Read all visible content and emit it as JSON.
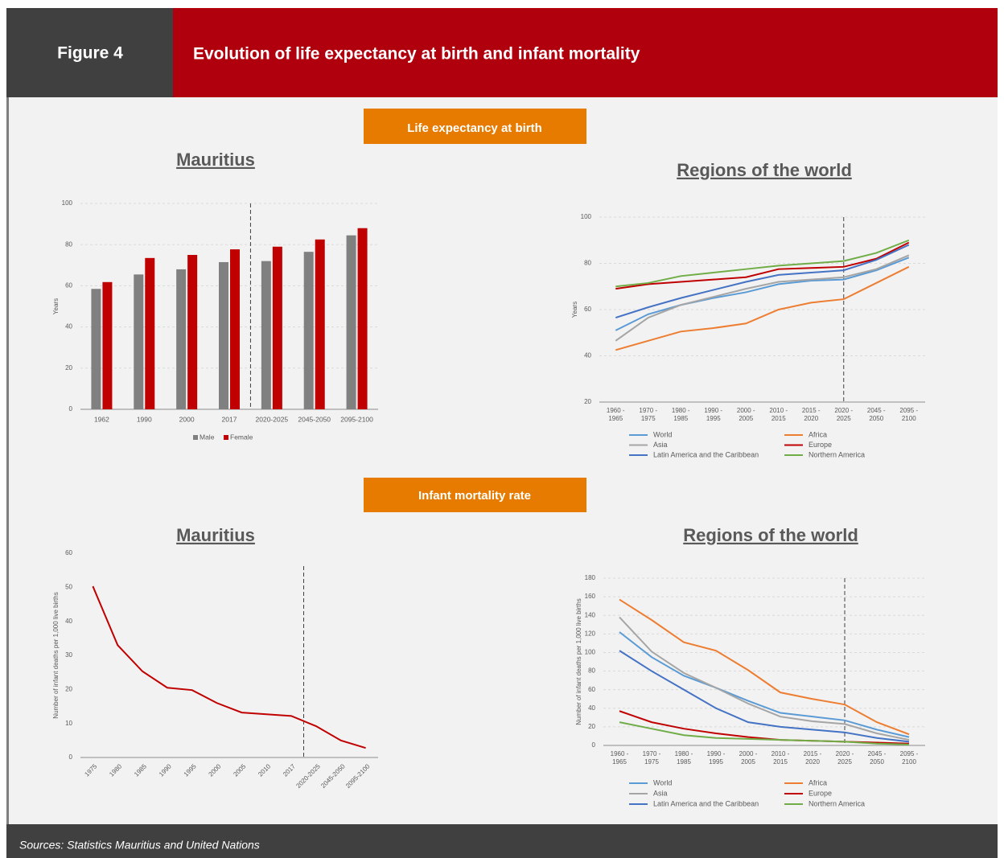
{
  "header": {
    "label": "Figure 4",
    "title": "Evolution of life expectancy at birth and infant mortality"
  },
  "sections": [
    "Life expectancy at birth",
    "Infant mortality rate"
  ],
  "chart_data": [
    {
      "type": "bar",
      "title": "Mauritius",
      "ylabel": "Years",
      "categories": [
        "1962",
        "1990",
        "2000",
        "2017",
        "2020-2025",
        "2045-2050",
        "2095-2100"
      ],
      "series": [
        {
          "name": "Male",
          "color": "#808080",
          "values": [
            58.5,
            65.5,
            68,
            71.5,
            72,
            76.5,
            84.5
          ]
        },
        {
          "name": "Female",
          "color": "#c00000",
          "values": [
            61.8,
            73.5,
            75,
            77.7,
            79,
            82.5,
            88
          ]
        }
      ],
      "ylim": [
        0,
        100
      ],
      "yticks": [
        0,
        20,
        40,
        60,
        80,
        100
      ],
      "grid": true,
      "legend": "bottom"
    },
    {
      "type": "line",
      "title": "Regions of the world",
      "ylabel": "Years",
      "categories": [
        "1960 - 1965",
        "1970 - 1975",
        "1980 - 1985",
        "1990 - 1995",
        "2000 - 2005",
        "2010 - 2015",
        "2015 - 2020",
        "2020 - 2025",
        "2045 - 2050",
        "2095 - 2100"
      ],
      "series": [
        {
          "name": "World",
          "color": "#5b9bd5",
          "values": [
            51,
            58,
            62,
            65,
            67.5,
            71,
            72.5,
            73,
            77,
            82.5
          ]
        },
        {
          "name": "Africa",
          "color": "#ed7d31",
          "values": [
            42.5,
            46.5,
            50.5,
            52,
            54,
            60,
            63,
            64.5,
            71.5,
            78.5
          ]
        },
        {
          "name": "Asia",
          "color": "#a5a5a5",
          "values": [
            46.5,
            56.5,
            62,
            65.5,
            69,
            72,
            73,
            74,
            77.5,
            83.5
          ]
        },
        {
          "name": "Europe",
          "color": "#c00000",
          "values": [
            69,
            71,
            72,
            73,
            74,
            77.5,
            78,
            78.5,
            82,
            89
          ]
        },
        {
          "name": "Latin America and the Caribbean",
          "color": "#4472c4",
          "values": [
            56.5,
            61,
            65,
            68.5,
            72,
            75,
            76,
            77,
            81.5,
            88
          ]
        },
        {
          "name": "Northern America",
          "color": "#70ad47",
          "values": [
            70,
            71.5,
            74.5,
            76,
            77.5,
            79,
            80,
            81,
            84.5,
            90
          ]
        }
      ],
      "ylim": [
        20,
        100
      ],
      "yticks": [
        20,
        40,
        60,
        80,
        100
      ],
      "grid": true,
      "legend": "bottom"
    },
    {
      "type": "line",
      "title": "Mauritius",
      "ylabel": "Number of infant deaths per 1,000 live births",
      "categories": [
        "1975",
        "1980",
        "1985",
        "1990",
        "1995",
        "2000",
        "2005",
        "2010",
        "2017",
        "2020-2025",
        "2045-2050",
        "2095-2100"
      ],
      "values": [
        50.3,
        33,
        25.3,
        20.5,
        19.8,
        16,
        13.2,
        12.7,
        12.2,
        9.2,
        5,
        2.8
      ],
      "color": "#c00000",
      "ylim": [
        0,
        60
      ],
      "yticks": [
        0,
        10,
        20,
        30,
        40,
        50,
        60
      ],
      "grid": false
    },
    {
      "type": "line",
      "title": "Regions of the world",
      "ylabel": "Number of infant deaths per 1,000 live births",
      "categories": [
        "1960 - 1965",
        "1970 - 1975",
        "1980 - 1985",
        "1990 - 1995",
        "2000 - 2005",
        "2010 - 2015",
        "2015 - 2020",
        "2020 - 2025",
        "2045 - 2050",
        "2095 - 2100"
      ],
      "series": [
        {
          "name": "World",
          "color": "#5b9bd5",
          "values": [
            122,
            95,
            75,
            62,
            48,
            35,
            31,
            27,
            17,
            9
          ]
        },
        {
          "name": "Africa",
          "color": "#ed7d31",
          "values": [
            157,
            135,
            111,
            102,
            81,
            57,
            50,
            44,
            25,
            12
          ]
        },
        {
          "name": "Asia",
          "color": "#a5a5a5",
          "values": [
            138,
            101,
            78,
            62,
            45,
            31,
            26,
            23,
            13,
            6
          ]
        },
        {
          "name": "Europe",
          "color": "#c00000",
          "values": [
            37,
            25,
            18,
            13,
            9,
            6,
            5,
            4,
            3,
            2
          ]
        },
        {
          "name": "Latin America and the Caribbean",
          "color": "#4472c4",
          "values": [
            102,
            80,
            60,
            40,
            25,
            20,
            17,
            14,
            8,
            4
          ]
        },
        {
          "name": "Northern America",
          "color": "#70ad47",
          "values": [
            25,
            18,
            11,
            8,
            7,
            6,
            5,
            4,
            2,
            1
          ]
        }
      ],
      "ylim": [
        0,
        180
      ],
      "yticks": [
        0,
        20,
        40,
        60,
        80,
        100,
        120,
        140,
        160,
        180
      ],
      "grid": true,
      "legend": "bottom"
    }
  ],
  "footer": "Sources: Statistics Mauritius and United Nations"
}
